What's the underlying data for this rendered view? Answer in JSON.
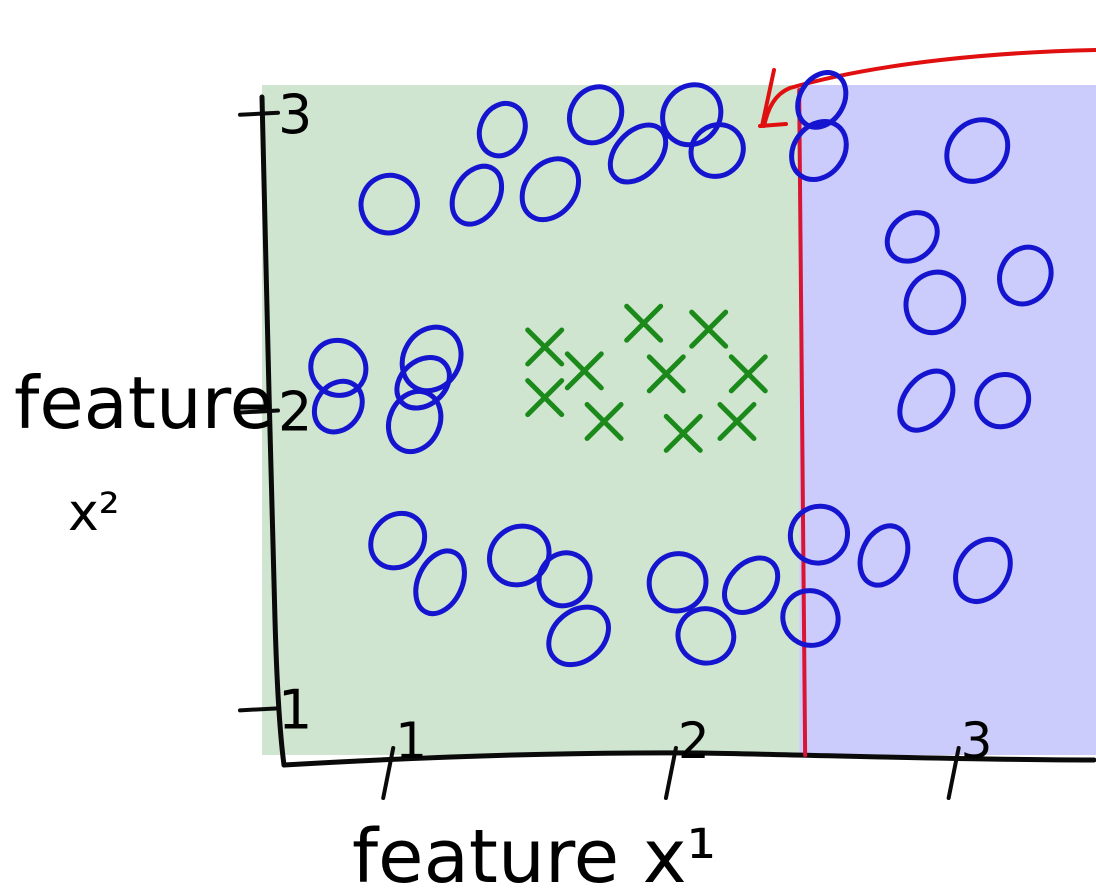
{
  "chart_data": {
    "type": "scatter",
    "xlabel": "feature  x¹",
    "ylabel": "feature",
    "ylabel_sub": "x²",
    "xlim": [
      0.55,
      3.5
    ],
    "ylim": [
      0.85,
      3.1
    ],
    "x_ticks": [
      "1",
      "2",
      "3"
    ],
    "y_ticks": [
      "1",
      "2",
      "3"
    ],
    "decision_boundary_x": 2.45,
    "regions": [
      {
        "x_range": [
          0.55,
          2.45
        ],
        "color": "#cfe5d0"
      },
      {
        "x_range": [
          2.45,
          3.5
        ],
        "color": "#ccccfc"
      }
    ],
    "series": [
      {
        "marker": "o",
        "color": "#1515d0",
        "points": [
          [
            1.4,
            2.95
          ],
          [
            1.73,
            3.0
          ],
          [
            2.07,
            3.0
          ],
          [
            1.88,
            2.87
          ],
          [
            2.16,
            2.88
          ],
          [
            1.0,
            2.7
          ],
          [
            1.31,
            2.73
          ],
          [
            1.57,
            2.75
          ],
          [
            0.82,
            2.15
          ],
          [
            1.12,
            2.1
          ],
          [
            1.09,
            1.97
          ],
          [
            1.15,
            2.18
          ],
          [
            0.82,
            2.02
          ],
          [
            1.03,
            1.57
          ],
          [
            1.46,
            1.52
          ],
          [
            1.18,
            1.43
          ],
          [
            1.62,
            1.44
          ],
          [
            2.02,
            1.43
          ],
          [
            2.28,
            1.42
          ],
          [
            1.67,
            1.25
          ],
          [
            2.12,
            1.25
          ],
          [
            2.53,
            3.05
          ],
          [
            2.52,
            2.88
          ],
          [
            3.08,
            2.88
          ],
          [
            2.85,
            2.59
          ],
          [
            3.25,
            2.46
          ],
          [
            2.93,
            2.37
          ],
          [
            2.9,
            2.04
          ],
          [
            3.17,
            2.04
          ],
          [
            2.52,
            1.59
          ],
          [
            2.75,
            1.52
          ],
          [
            3.1,
            1.47
          ],
          [
            2.49,
            1.31
          ]
        ]
      },
      {
        "marker": "x",
        "color": "#1b8a1b",
        "points": [
          [
            1.55,
            2.22
          ],
          [
            1.9,
            2.3
          ],
          [
            2.13,
            2.28
          ],
          [
            1.69,
            2.14
          ],
          [
            1.98,
            2.13
          ],
          [
            2.27,
            2.13
          ],
          [
            1.55,
            2.05
          ],
          [
            1.76,
            1.97
          ],
          [
            2.23,
            1.97
          ],
          [
            2.04,
            1.93
          ]
        ]
      }
    ],
    "annotation_arrow_color": "#e01010",
    "boundary_color": "#d81535"
  }
}
